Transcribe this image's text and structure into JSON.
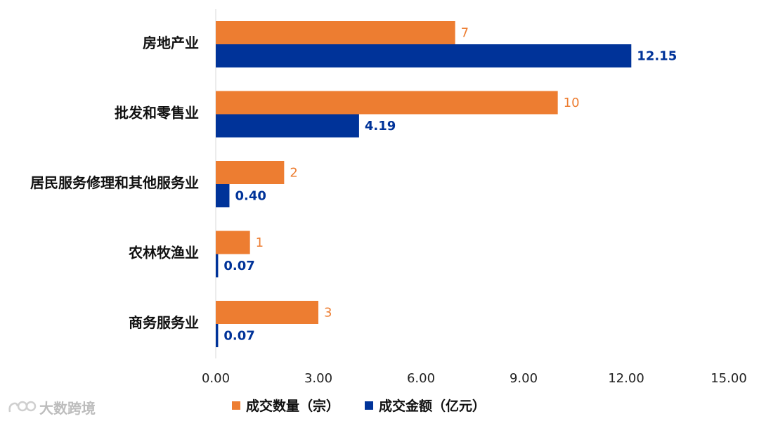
{
  "chart_data": {
    "type": "bar",
    "orientation": "horizontal",
    "categories": [
      "房地产业",
      "批发和零售业",
      "居民服务修理和其他服务业",
      "农林牧渔业",
      "商务服务业"
    ],
    "series": [
      {
        "name": "成交数量（宗）",
        "color": "#ed7d31",
        "values": [
          7,
          10,
          2,
          1,
          3
        ],
        "labels": [
          "7",
          "10",
          "2",
          "1",
          "3"
        ]
      },
      {
        "name": "成交金额（亿元）",
        "color": "#003399",
        "values": [
          12.15,
          4.19,
          0.4,
          0.07,
          0.07
        ],
        "labels": [
          "12.15",
          "4.19",
          "0.40",
          "0.07",
          "0.07"
        ]
      }
    ],
    "xlim": [
      0,
      15
    ],
    "xticks": [
      "0.00",
      "3.00",
      "6.00",
      "9.00",
      "12.00",
      "15.00"
    ],
    "title": "",
    "xlabel": "",
    "ylabel": "",
    "grid": false,
    "legend": "bottom"
  },
  "watermark": {
    "text": "大数跨境"
  }
}
